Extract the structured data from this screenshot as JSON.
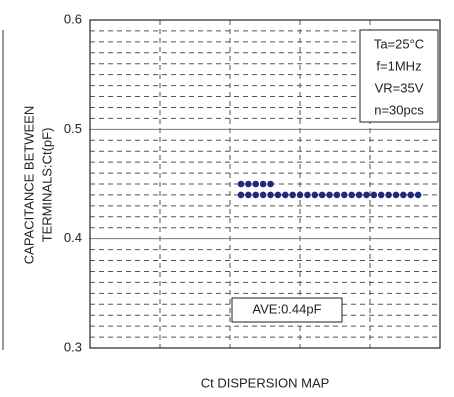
{
  "chart_data": {
    "type": "dispersion",
    "title": "Ct DISPERSION MAP",
    "y_label": [
      "CAPACITANCE BETWEEN",
      "TERMINALS:Ct(pF)"
    ],
    "values": [
      0.45,
      0.45,
      0.45,
      0.45,
      0.45,
      0.44,
      0.44,
      0.44,
      0.44,
      0.44,
      0.44,
      0.44,
      0.44,
      0.44,
      0.44,
      0.44,
      0.44,
      0.44,
      0.44,
      0.44,
      0.44,
      0.44,
      0.44,
      0.44,
      0.44,
      0.44,
      0.44,
      0.44,
      0.44,
      0.44
    ],
    "color": "#1f2a7a",
    "ylim": [
      0.3,
      0.6
    ],
    "yticks": [
      0.3,
      0.4,
      0.5,
      0.6
    ],
    "minor_yticks": [
      0.31,
      0.32,
      0.33,
      0.34,
      0.35,
      0.36,
      0.37,
      0.38,
      0.39,
      0.41,
      0.42,
      0.43,
      0.44,
      0.45,
      0.46,
      0.47,
      0.48,
      0.49,
      0.51,
      0.52,
      0.53,
      0.54,
      0.55,
      0.56,
      0.57,
      0.58,
      0.59
    ],
    "grid": true,
    "conditions": [
      "Ta=25°C",
      "f=1MHz",
      "VR=35V",
      "n=30pcs"
    ],
    "average_label": "AVE:0.44pF"
  }
}
